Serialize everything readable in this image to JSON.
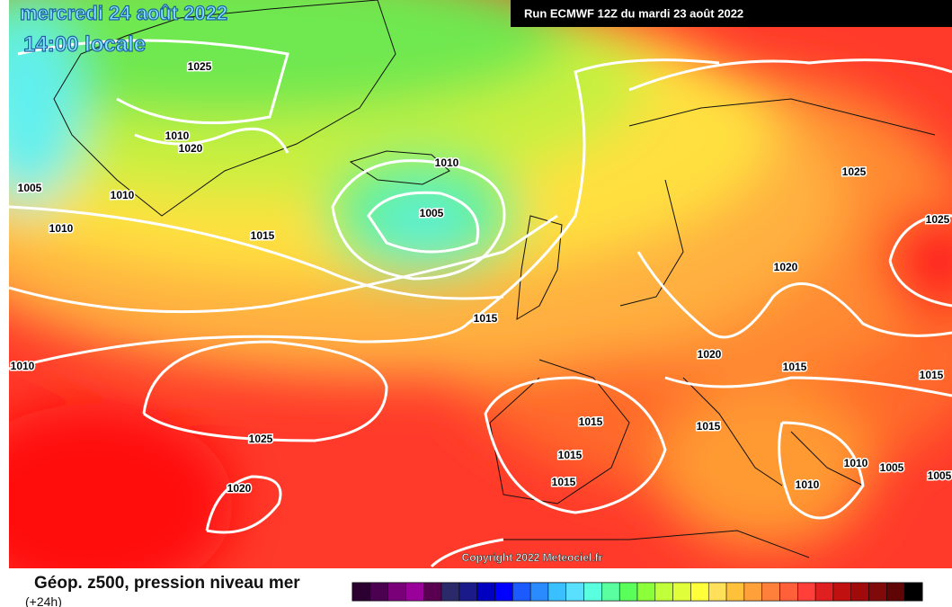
{
  "header": {
    "date": "mercredi 24 août 2022",
    "time": "14:00 locale",
    "run": "Run ECMWF 12Z du mardi 23 août 2022"
  },
  "isobar_labels": [
    1025,
    1010,
    1020,
    1005,
    1010,
    1010,
    1015,
    1010,
    1005,
    1015,
    1010,
    1025,
    1020,
    1025,
    1025,
    1020,
    1020,
    1015,
    1015,
    1015,
    1015,
    1015,
    1015,
    1010,
    1005,
    1005,
    1010
  ],
  "copyright": "Copyright 2022 Meteociel.fr",
  "legend": {
    "title": "Géop. z500, pression niveau mer",
    "subtitle": "(+24h)",
    "colors": [
      "#2b0030",
      "#4b0050",
      "#7a007a",
      "#9a009a",
      "#5a0050",
      "#2a2a6a",
      "#1a1a8a",
      "#0000c0",
      "#0000ff",
      "#1a5aff",
      "#2a8aff",
      "#3ac0ff",
      "#5ae0ff",
      "#5affe0",
      "#5affa0",
      "#5aff5a",
      "#8aff3a",
      "#c0ff3a",
      "#e0ff3a",
      "#ffff3a",
      "#ffe05a",
      "#ffc03a",
      "#ffa03a",
      "#ff803a",
      "#ff603a",
      "#ff403a",
      "#e02020",
      "#c01010",
      "#a00a0a",
      "#800a0a",
      "#600505",
      "#000000"
    ]
  }
}
